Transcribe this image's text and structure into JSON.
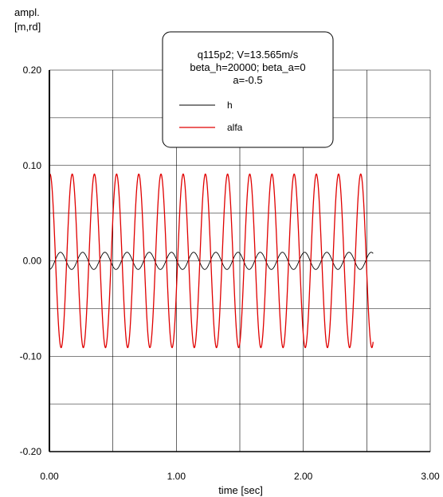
{
  "chart_data": {
    "type": "line",
    "ylabel_line1": "ampl.",
    "ylabel_line2": "[m,rd]",
    "xlabel": "time [sec]",
    "xlim": [
      0,
      3
    ],
    "ylim": [
      -0.2,
      0.2
    ],
    "x_major_ticks": [
      0,
      1,
      2,
      3
    ],
    "x_tick_labels": [
      "0.00",
      "1.00",
      "2.00",
      "3.00"
    ],
    "x_grid": [
      0,
      0.5,
      1,
      1.5,
      2,
      2.5,
      3
    ],
    "y_major_ticks": [
      -0.2,
      -0.1,
      0,
      0.1,
      0.2
    ],
    "y_tick_labels": [
      "-0.20",
      "-0.10",
      "0.00",
      "0.10",
      "0.20"
    ],
    "y_grid": [
      -0.2,
      -0.15,
      -0.1,
      -0.05,
      0,
      0.05,
      0.1,
      0.15,
      0.2
    ],
    "grid": true,
    "legend": {
      "placement": "top-center",
      "lines": [
        "q115p2; V=13.565m/s",
        "beta_h=20000; beta_a=0",
        "a=-0.5"
      ]
    },
    "series": [
      {
        "name": "h",
        "color": "#000000",
        "t_start": 0,
        "t_end": 2.55,
        "amplitude": 0.009,
        "frequency_hz": 5.72,
        "phase_deg": 270
      },
      {
        "name": "alfa",
        "color": "#e00000",
        "t_start": 0,
        "t_end": 2.55,
        "amplitude": 0.091,
        "frequency_hz": 5.72,
        "phase_deg": 80
      }
    ]
  }
}
